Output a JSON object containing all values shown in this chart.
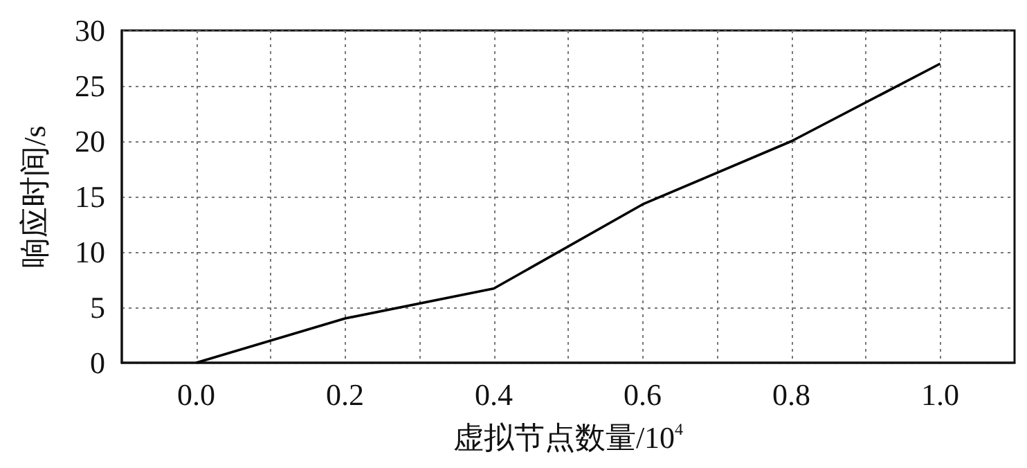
{
  "chart_data": {
    "type": "line",
    "xlabel": "虚拟节点数量/10$^{4}$",
    "ylabel": "响应时间/s",
    "x": [
      0,
      0.2,
      0.4,
      0.6,
      0.8,
      1.0
    ],
    "series": [
      {
        "color": "#000000",
        "values": [
          0,
          4,
          6.7,
          14.3,
          20,
          27
        ]
      }
    ],
    "xlim": [
      -0.1,
      1.1
    ],
    "xticks": [
      {
        "value": 0,
        "label": "0.0"
      },
      {
        "value": 0.1,
        "label": null
      },
      {
        "value": 0.2,
        "label": "0.2"
      },
      {
        "value": 0.3,
        "label": null
      },
      {
        "value": 0.4,
        "label": "0.4"
      },
      {
        "value": 0.5,
        "label": null
      },
      {
        "value": 0.6,
        "label": "0.6"
      },
      {
        "value": 0.7,
        "label": null
      },
      {
        "value": 0.8,
        "label": "0.8"
      },
      {
        "value": 0.9,
        "label": null
      },
      {
        "value": 1.0,
        "label": "1.0"
      }
    ],
    "ylim": [
      0,
      30
    ],
    "yticks": [
      0,
      5,
      10,
      15,
      20,
      25,
      30
    ],
    "grid": true,
    "marker": "none",
    "line_style": "solid"
  }
}
